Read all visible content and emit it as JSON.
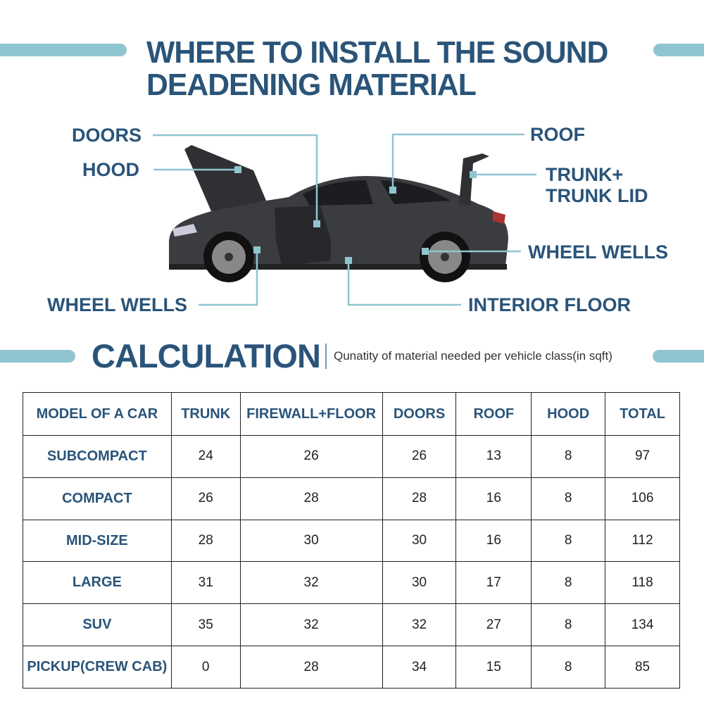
{
  "header": {
    "title_line1": "WHERE TO INSTALL THE SOUND",
    "title_line2": "DEADENING MATERIAL"
  },
  "colors": {
    "primary": "#2a5479",
    "accent_bar": "#8fc5d0",
    "car": "#3a3c40"
  },
  "callouts": {
    "doors": "DOORS",
    "hood": "HOOD",
    "roof": "ROOF",
    "trunk_line1": "TRUNK+",
    "trunk_line2": "TRUNK LID",
    "wheel_wells_right": "WHEEL WELLS",
    "wheel_wells_left": "WHEEL WELLS",
    "interior_floor": "INTERIOR FLOOR"
  },
  "calculation": {
    "title": "CALCULATION",
    "subtitle": "Qunatity of material needed per vehicle class(in sqft)"
  },
  "table": {
    "headers": [
      "MODEL OF A CAR",
      "TRUNK",
      "FIREWALL+FLOOR",
      "DOORS",
      "ROOF",
      "HOOD",
      "TOTAL"
    ],
    "rows": [
      [
        "SUBCOMPACT",
        "24",
        "26",
        "26",
        "13",
        "8",
        "97"
      ],
      [
        "COMPACT",
        "26",
        "28",
        "28",
        "16",
        "8",
        "106"
      ],
      [
        "MID-SIZE",
        "28",
        "30",
        "30",
        "16",
        "8",
        "112"
      ],
      [
        "LARGE",
        "31",
        "32",
        "30",
        "17",
        "8",
        "118"
      ],
      [
        "SUV",
        "35",
        "32",
        "32",
        "27",
        "8",
        "134"
      ],
      [
        "PICKUP(CREW CAB)",
        "0",
        "28",
        "34",
        "15",
        "8",
        "85"
      ]
    ]
  }
}
